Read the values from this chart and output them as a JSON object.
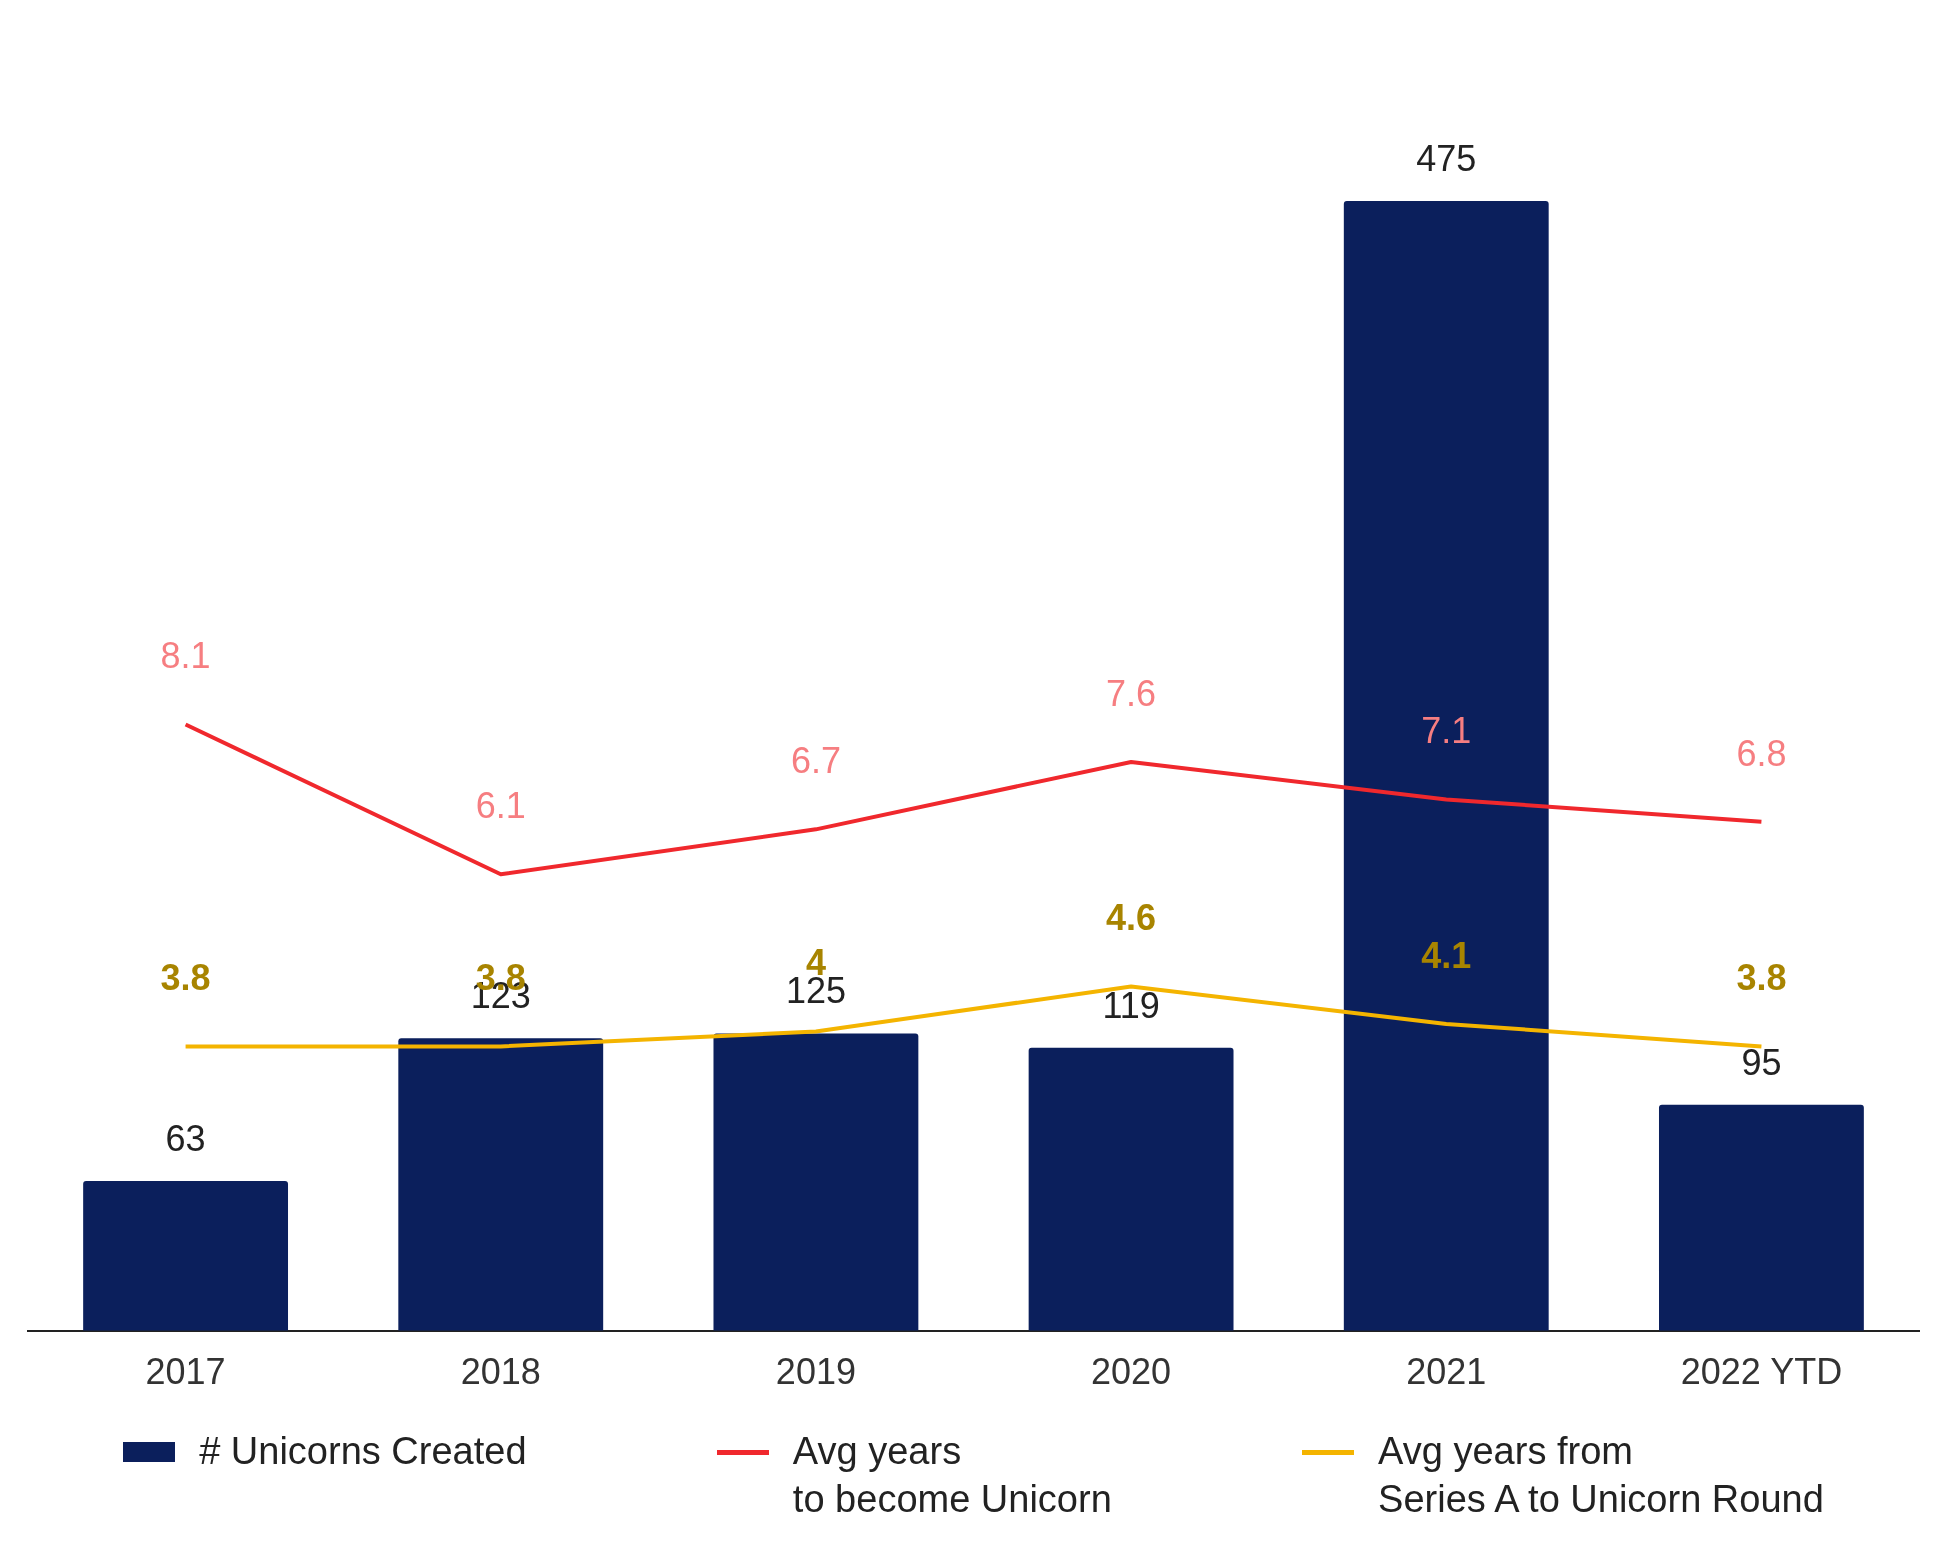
{
  "chart_data": {
    "type": "bar",
    "categories": [
      "2017",
      "2018",
      "2019",
      "2020",
      "2021",
      "2022 YTD"
    ],
    "series": [
      {
        "name": "# Unicorns Created",
        "color": "#0b1f5c",
        "values": [
          63,
          123,
          125,
          119,
          475,
          95
        ]
      },
      {
        "name": "Avg years\nto become Unicorn",
        "type": "line",
        "axis": "y2",
        "color": "#f0282d",
        "values": [
          8.1,
          6.1,
          6.7,
          7.6,
          7.1,
          6.8
        ]
      },
      {
        "name": "Avg years from\nSeries A to Unicorn Round",
        "type": "line",
        "axis": "y2",
        "color": "#f4b400",
        "values": [
          3.8,
          3.8,
          4,
          4.6,
          4.1,
          3.8
        ]
      }
    ],
    "tick_labels": "x",
    "data_labels": true,
    "grid": false,
    "legend": "bottom",
    "marker": "none",
    "line_style": "solid"
  }
}
